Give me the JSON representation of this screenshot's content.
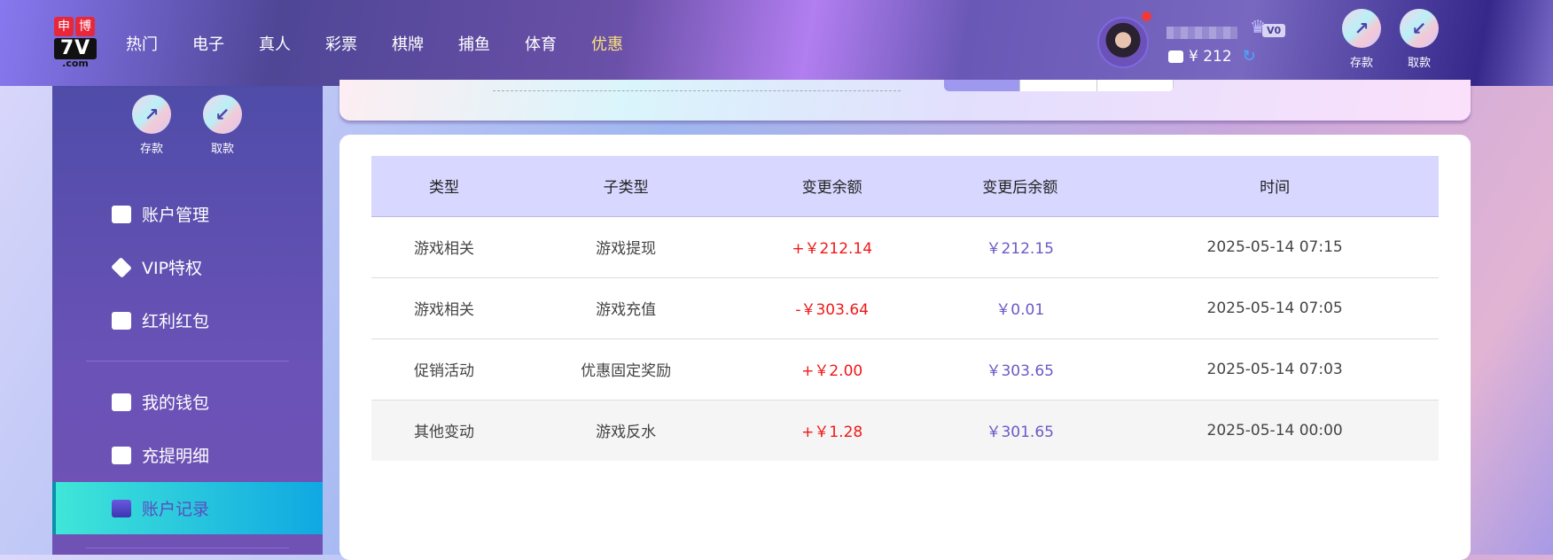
{
  "header": {
    "logo": {
      "top": [
        "申",
        "博"
      ],
      "main": "7V",
      "sub": ".com"
    },
    "nav": [
      "热门",
      "电子",
      "真人",
      "彩票",
      "棋牌",
      "捕鱼",
      "体育",
      "优惠"
    ],
    "active_nav_color": "#f7e27a",
    "user": {
      "vip": "V0",
      "balance": "¥ 212"
    },
    "deposit": "存款",
    "withdraw": "取款"
  },
  "sidebar": {
    "deposit": "存款",
    "withdraw": "取款",
    "items": [
      {
        "label": "账户管理",
        "icon": "card-icon"
      },
      {
        "label": "VIP特权",
        "icon": "diamond-icon"
      },
      {
        "label": "红利红包",
        "icon": "envelope-icon"
      },
      {
        "label": "我的钱包",
        "icon": "wallet-icon"
      },
      {
        "label": "充提明细",
        "icon": "document-icon"
      },
      {
        "label": "账户记录",
        "icon": "clipboard-icon",
        "active": true
      }
    ]
  },
  "table": {
    "columns": [
      "类型",
      "子类型",
      "变更余额",
      "变更后余额",
      "时间"
    ],
    "rows": [
      [
        "游戏相关",
        "游戏提现",
        "+￥212.14",
        "￥212.15",
        "2025-05-14 07:15"
      ],
      [
        "游戏相关",
        "游戏充值",
        "-￥303.64",
        "￥0.01",
        "2025-05-14 07:05"
      ],
      [
        "促销活动",
        "优惠固定奖励",
        "+￥2.00",
        "￥303.65",
        "2025-05-14 07:03"
      ],
      [
        "其他变动",
        "游戏反水",
        "+￥1.28",
        "￥301.65",
        "2025-05-14 00:00"
      ]
    ]
  }
}
